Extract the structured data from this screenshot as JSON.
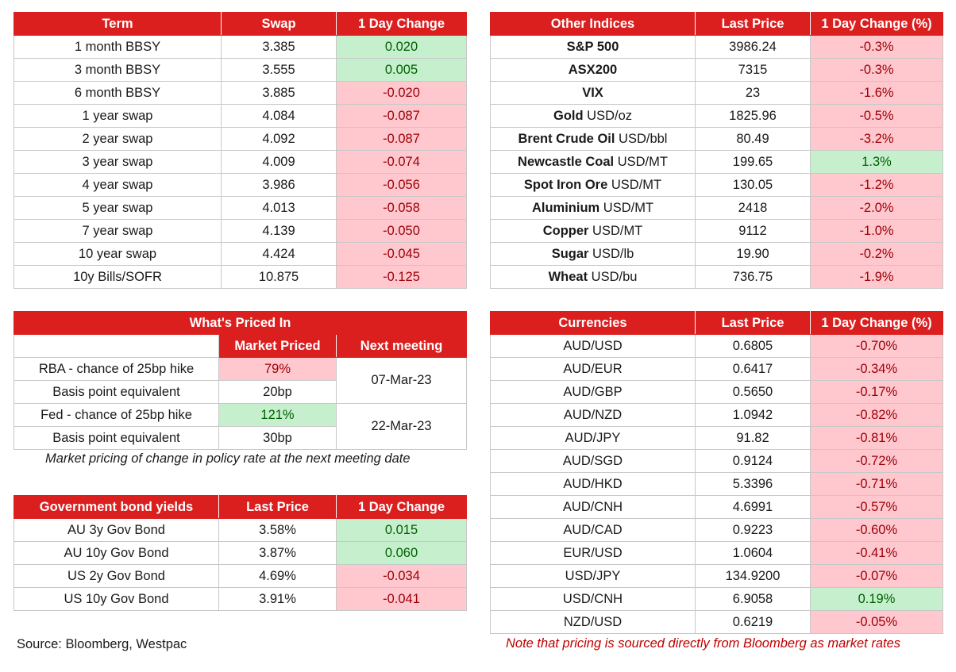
{
  "swaps": {
    "headers": [
      "Term",
      "Swap",
      "1 Day Change"
    ],
    "rows": [
      {
        "term": "1 month BBSY",
        "swap": "3.385",
        "change": "0.020",
        "dir": "pos"
      },
      {
        "term": "3 month BBSY",
        "swap": "3.555",
        "change": "0.005",
        "dir": "pos"
      },
      {
        "term": "6 month BBSY",
        "swap": "3.885",
        "change": "-0.020",
        "dir": "neg"
      },
      {
        "term": "1 year swap",
        "swap": "4.084",
        "change": "-0.087",
        "dir": "neg"
      },
      {
        "term": "2 year swap",
        "swap": "4.092",
        "change": "-0.087",
        "dir": "neg"
      },
      {
        "term": "3 year swap",
        "swap": "4.009",
        "change": "-0.074",
        "dir": "neg"
      },
      {
        "term": "4 year swap",
        "swap": "3.986",
        "change": "-0.056",
        "dir": "neg"
      },
      {
        "term": "5 year swap",
        "swap": "4.013",
        "change": "-0.058",
        "dir": "neg"
      },
      {
        "term": "7 year swap",
        "swap": "4.139",
        "change": "-0.050",
        "dir": "neg"
      },
      {
        "term": "10 year swap",
        "swap": "4.424",
        "change": "-0.045",
        "dir": "neg"
      },
      {
        "term": "10y Bills/SOFR",
        "swap": "10.875",
        "change": "-0.125",
        "dir": "neg"
      }
    ]
  },
  "indices": {
    "headers": [
      "Other Indices",
      "Last Price",
      "1 Day Change (%)"
    ],
    "rows": [
      {
        "name": "S&P 500",
        "unit": "",
        "price": "3986.24",
        "change": "-0.3%",
        "dir": "neg"
      },
      {
        "name": "ASX200",
        "unit": "",
        "price": "7315",
        "change": "-0.3%",
        "dir": "neg"
      },
      {
        "name": "VIX",
        "unit": "",
        "price": "23",
        "change": "-1.6%",
        "dir": "neg"
      },
      {
        "name": "Gold",
        "unit": " USD/oz",
        "price": "1825.96",
        "change": "-0.5%",
        "dir": "neg"
      },
      {
        "name": "Brent Crude Oil",
        "unit": " USD/bbl",
        "price": "80.49",
        "change": "-3.2%",
        "dir": "neg"
      },
      {
        "name": "Newcastle Coal",
        "unit": " USD/MT",
        "price": "199.65",
        "change": "1.3%",
        "dir": "pos"
      },
      {
        "name": "Spot Iron Ore",
        "unit": " USD/MT",
        "price": "130.05",
        "change": "-1.2%",
        "dir": "neg"
      },
      {
        "name": "Aluminium",
        "unit": " USD/MT",
        "price": "2418",
        "change": "-2.0%",
        "dir": "neg"
      },
      {
        "name": "Copper",
        "unit": " USD/MT",
        "price": "9112",
        "change": "-1.0%",
        "dir": "neg"
      },
      {
        "name": "Sugar",
        "unit": " USD/lb",
        "price": "19.90",
        "change": "-0.2%",
        "dir": "neg"
      },
      {
        "name": "Wheat",
        "unit": " USD/bu",
        "price": "736.75",
        "change": "-1.9%",
        "dir": "neg"
      }
    ]
  },
  "priced_in": {
    "title": "What's Priced In",
    "col_market": "Market Priced",
    "col_next": "Next meeting",
    "rba_label": "RBA - chance of 25bp hike",
    "rba_value": "79%",
    "rba_bp_label": "Basis point equivalent",
    "rba_bp_value": "20bp",
    "rba_date": "07-Mar-23",
    "fed_label": "Fed - chance of 25bp hike",
    "fed_value": "121%",
    "fed_bp_label": "Basis point equivalent",
    "fed_bp_value": "30bp",
    "fed_date": "22-Mar-23",
    "note": "Market pricing of change in policy rate at the next meeting date"
  },
  "bonds": {
    "headers": [
      "Government bond yields",
      "Last Price",
      "1 Day Change"
    ],
    "rows": [
      {
        "name": "AU 3y Gov Bond",
        "price": "3.58%",
        "change": "0.015",
        "dir": "pos"
      },
      {
        "name": "AU 10y Gov Bond",
        "price": "3.87%",
        "change": "0.060",
        "dir": "pos"
      },
      {
        "name": "US 2y Gov Bond",
        "price": "4.69%",
        "change": "-0.034",
        "dir": "neg"
      },
      {
        "name": "US 10y Gov Bond",
        "price": "3.91%",
        "change": "-0.041",
        "dir": "neg"
      }
    ]
  },
  "currencies": {
    "headers": [
      "Currencies",
      "Last Price",
      "1 Day Change (%)"
    ],
    "rows": [
      {
        "pair": "AUD/USD",
        "price": "0.6805",
        "change": "-0.70%",
        "dir": "neg"
      },
      {
        "pair": "AUD/EUR",
        "price": "0.6417",
        "change": "-0.34%",
        "dir": "neg"
      },
      {
        "pair": "AUD/GBP",
        "price": "0.5650",
        "change": "-0.17%",
        "dir": "neg"
      },
      {
        "pair": "AUD/NZD",
        "price": "1.0942",
        "change": "-0.82%",
        "dir": "neg"
      },
      {
        "pair": "AUD/JPY",
        "price": "91.82",
        "change": "-0.81%",
        "dir": "neg"
      },
      {
        "pair": "AUD/SGD",
        "price": "0.9124",
        "change": "-0.72%",
        "dir": "neg"
      },
      {
        "pair": "AUD/HKD",
        "price": "5.3396",
        "change": "-0.71%",
        "dir": "neg"
      },
      {
        "pair": "AUD/CNH",
        "price": "4.6991",
        "change": "-0.57%",
        "dir": "neg"
      },
      {
        "pair": "AUD/CAD",
        "price": "0.9223",
        "change": "-0.60%",
        "dir": "neg"
      },
      {
        "pair": "EUR/USD",
        "price": "1.0604",
        "change": "-0.41%",
        "dir": "neg"
      },
      {
        "pair": "USD/JPY",
        "price": "134.9200",
        "change": "-0.07%",
        "dir": "neg"
      },
      {
        "pair": "USD/CNH",
        "price": "6.9058",
        "change": "0.19%",
        "dir": "pos"
      },
      {
        "pair": "NZD/USD",
        "price": "0.6219",
        "change": "-0.05%",
        "dir": "neg"
      }
    ]
  },
  "footer": {
    "source": "Source: Bloomberg, Westpac",
    "note": "Note that pricing is sourced directly from Bloomberg as market rates"
  },
  "colors": {
    "header_red": "#db1f1f",
    "neg_fill": "#ffc7ce",
    "neg_text": "#9c0006",
    "pos_fill": "#c6efce",
    "pos_text": "#006100"
  }
}
